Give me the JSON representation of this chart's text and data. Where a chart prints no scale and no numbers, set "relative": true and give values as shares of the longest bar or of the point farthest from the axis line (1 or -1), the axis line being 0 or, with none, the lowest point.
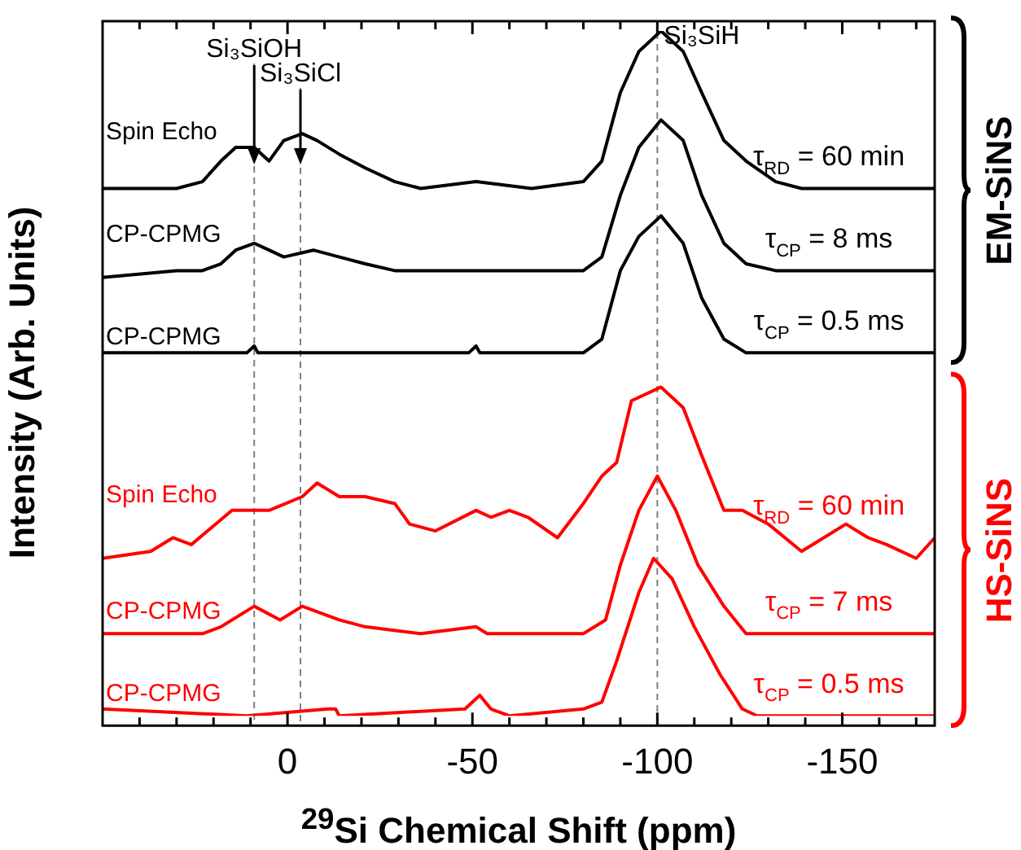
{
  "chart_data": {
    "type": "line",
    "relative": true,
    "xlabel": "$^{29}$Si Chemical Shift (ppm)",
    "ylabel": "Intensity (Arb. Units)",
    "xlim": [
      50,
      -175
    ],
    "xticks": [
      {
        "value": 40,
        "label": null
      },
      {
        "value": 30,
        "label": null
      },
      {
        "value": 20,
        "label": null
      },
      {
        "value": 10,
        "label": null
      },
      0,
      {
        "value": -10,
        "label": null
      },
      {
        "value": -20,
        "label": null
      },
      {
        "value": -30,
        "label": null
      },
      {
        "value": -40,
        "label": null
      },
      -50,
      {
        "value": -60,
        "label": null
      },
      {
        "value": -70,
        "label": null
      },
      {
        "value": -80,
        "label": null
      },
      {
        "value": -90,
        "label": null
      },
      -100,
      {
        "value": -110,
        "label": null
      },
      {
        "value": -120,
        "label": null
      },
      {
        "value": -130,
        "label": null
      },
      {
        "value": -140,
        "label": null
      },
      -150,
      {
        "value": -160,
        "label": null
      },
      {
        "value": -170,
        "label": null
      }
    ],
    "legend": false,
    "marker": "none",
    "line_style": "solid",
    "series": [
      {
        "name": "Spin Echo",
        "color": "#000000",
        "x": [
          50,
          37,
          30,
          23,
          18,
          14,
          9,
          5,
          1,
          -4,
          -8,
          -14,
          -21,
          -29,
          -36,
          -51,
          -66,
          -80,
          -85,
          -90,
          -95,
          -101,
          -107,
          -112,
          -118,
          -124,
          -132,
          -139,
          -154,
          -175
        ],
        "values": [
          0.77,
          0.77,
          0.77,
          0.78,
          0.81,
          0.83,
          0.83,
          0.81,
          0.84,
          0.85,
          0.84,
          0.82,
          0.8,
          0.78,
          0.77,
          0.78,
          0.77,
          0.78,
          0.81,
          0.91,
          0.97,
          1.0,
          0.97,
          0.91,
          0.84,
          0.81,
          0.78,
          0.77,
          0.77,
          0.77
        ]
      },
      {
        "name": "CP-CPMG",
        "color": "#000000",
        "x": [
          50,
          30,
          23,
          18,
          14,
          9,
          5,
          1,
          -7,
          -14,
          -21,
          -29,
          -51,
          -80,
          -85,
          -90,
          -95,
          -101,
          -107,
          -112,
          -118,
          -124,
          -132,
          -154,
          -175
        ],
        "values": [
          0.64,
          0.65,
          0.65,
          0.66,
          0.68,
          0.69,
          0.68,
          0.67,
          0.68,
          0.67,
          0.66,
          0.65,
          0.65,
          0.65,
          0.67,
          0.76,
          0.83,
          0.87,
          0.84,
          0.76,
          0.69,
          0.66,
          0.65,
          0.65,
          0.65
        ]
      },
      {
        "name": "CP-CPMG",
        "color": "#000000",
        "x": [
          50,
          11,
          9,
          8,
          -49,
          -51,
          -52,
          -80,
          -85,
          -90,
          -95,
          -101,
          -107,
          -112,
          -118,
          -124,
          -175
        ],
        "values": [
          0.53,
          0.53,
          0.54,
          0.53,
          0.53,
          0.54,
          0.53,
          0.53,
          0.55,
          0.65,
          0.7,
          0.73,
          0.69,
          0.61,
          0.55,
          0.53,
          0.53
        ]
      },
      {
        "name": "Spin Echo",
        "color": "#ff0000",
        "x": [
          50,
          37,
          31,
          26,
          15,
          5,
          -4,
          -8,
          -14,
          -21,
          -29,
          -33,
          -40,
          -51,
          -55,
          -60,
          -65,
          -73,
          -80,
          -85,
          -89,
          -93,
          -101,
          -107,
          -112,
          -118,
          -123,
          -130,
          -139,
          -151,
          -157,
          -162,
          -170,
          -175
        ],
        "values": [
          0.23,
          0.24,
          0.26,
          0.25,
          0.3,
          0.3,
          0.32,
          0.34,
          0.32,
          0.32,
          0.31,
          0.28,
          0.27,
          0.3,
          0.29,
          0.3,
          0.29,
          0.26,
          0.31,
          0.35,
          0.37,
          0.46,
          0.48,
          0.45,
          0.38,
          0.3,
          0.3,
          0.28,
          0.24,
          0.28,
          0.26,
          0.25,
          0.23,
          0.26
        ]
      },
      {
        "name": "CP-CPMG",
        "color": "#ff0000",
        "x": [
          50,
          23,
          18,
          9,
          2,
          -4,
          -14,
          -21,
          -36,
          -51,
          -54,
          -80,
          -86,
          -90,
          -95,
          -100,
          -105,
          -111,
          -118,
          -124,
          -175
        ],
        "values": [
          0.12,
          0.12,
          0.13,
          0.16,
          0.14,
          0.16,
          0.14,
          0.13,
          0.12,
          0.13,
          0.12,
          0.12,
          0.14,
          0.22,
          0.3,
          0.35,
          0.3,
          0.22,
          0.16,
          0.12,
          0.12
        ]
      },
      {
        "name": "CP-CPMG",
        "color": "#ff0000",
        "x": [
          50,
          11,
          -11,
          -13,
          -14,
          -48,
          -52,
          -55,
          -60,
          -80,
          -85,
          -89,
          -95,
          -99,
          -104,
          -110,
          -117,
          -123,
          -127,
          -175
        ],
        "values": [
          0.01,
          0.0,
          0.01,
          0.01,
          0.0,
          0.01,
          0.03,
          0.01,
          0.0,
          0.01,
          0.02,
          0.08,
          0.18,
          0.23,
          0.2,
          0.13,
          0.06,
          0.01,
          0.0,
          0.0
        ]
      }
    ],
    "ref_lines": [
      {
        "axis": "x",
        "value": 9,
        "label": "Si₃SiOH",
        "color": "#808080",
        "line_style": "dashed"
      },
      {
        "axis": "x",
        "value": -3.5,
        "label": "Si₃SiCl",
        "color": "#808080",
        "line_style": "dashed"
      },
      {
        "axis": "x",
        "value": -100,
        "label": "Si₃SiH",
        "color": "#808080",
        "line_style": "dashed"
      }
    ],
    "annotations": [
      "τ$_{RD}$ = 60 min",
      "τ$_{CP}$ = 8 ms",
      "τ$_{CP}$ = 0.5 ms",
      "τ$_{RD}$ = 60 min",
      "τ$_{CP}$ = 7 ms",
      "τ$_{CP}$ = 0.5 ms",
      "EM-SiNS",
      "HS-SiNS"
    ]
  }
}
